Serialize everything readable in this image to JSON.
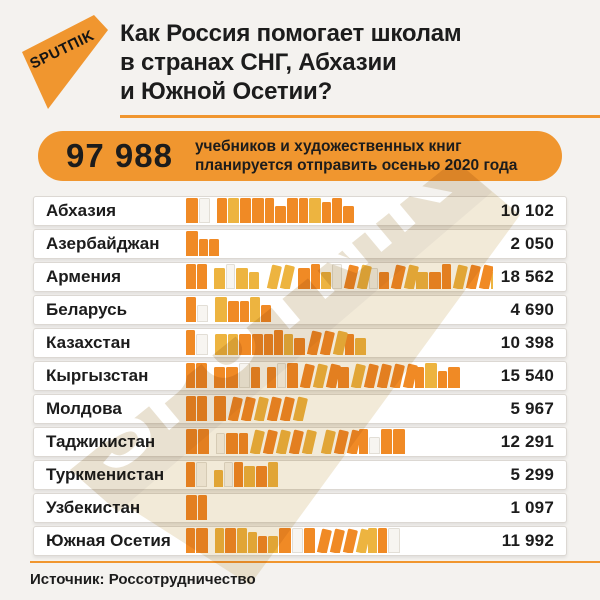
{
  "brand": {
    "logo_text": "SPUTΠIK"
  },
  "header": {
    "title_line1": "Как Россия помогает школам",
    "title_line2": "в странах СНГ, Абхазии",
    "title_line3": "и Южной Осетии?"
  },
  "highlight": {
    "number": "97 988",
    "desc_line1": "учебников и художественных книг",
    "desc_line2": "планируется отправить осенью 2020 года"
  },
  "footer": {
    "source": "Источник: Россотрудничество"
  },
  "colors": {
    "accent": "#F0962F",
    "book_orange": "#F08A25",
    "book_amber": "#EDB440",
    "book_blank": "#F7F5F1",
    "watermark_beige": "#E9E1D1",
    "watermark_cream": "#F2EAD8",
    "text": "#1C1C1C"
  },
  "chart_data": {
    "type": "bar",
    "title": "Как Россия помогает школам в странах СНГ, Абхазии и Южной Осетии?",
    "subtitle": "97 988 учебников и художественных книг планируется отправить осенью 2020 года",
    "total": 97988,
    "unit": "книг",
    "categories": [
      "Абхазия",
      "Азербайджан",
      "Армения",
      "Беларусь",
      "Казахстан",
      "Кыргызстан",
      "Молдова",
      "Таджикистан",
      "Туркменистан",
      "Узбекистан",
      "Южная Осетия"
    ],
    "values": [
      10102,
      2050,
      18562,
      4690,
      10398,
      15540,
      5967,
      12291,
      5299,
      1097,
      11992
    ],
    "values_formatted": [
      "10 102",
      "2 050",
      "18 562",
      "4 690",
      "10 398",
      "15 540",
      "5 967",
      "12 291",
      "5 299",
      "1 097",
      "11 992"
    ],
    "xlim": [
      0,
      18562
    ],
    "legend_position": "none",
    "grid": false,
    "source": "Россотрудничество"
  }
}
